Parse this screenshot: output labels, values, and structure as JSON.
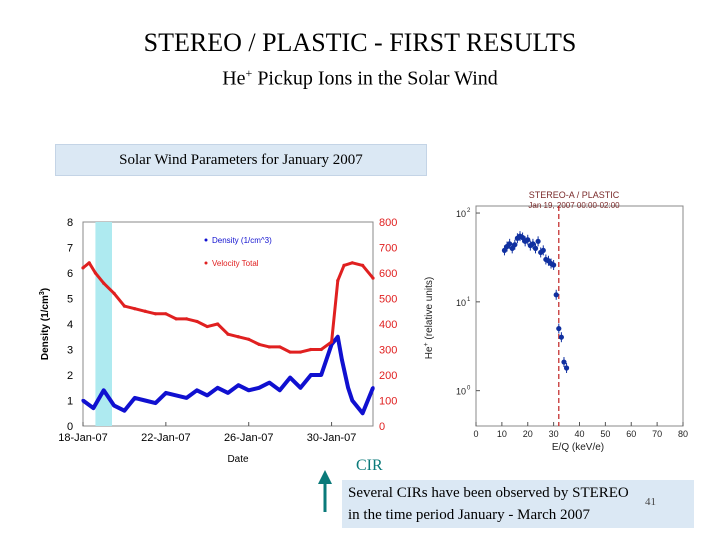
{
  "slide": {
    "title": "STEREO / PLASTIC - FIRST RESULTS",
    "subtitle_main": "He",
    "subtitle_sup": "+",
    "subtitle_rest": " Pickup Ions in the Solar Wind",
    "banner": "Solar Wind Parameters for January 2007",
    "cir_label": "CIR",
    "note_line1": "Several CIRs have been observed by STEREO",
    "note_line2": "in the time period January - March 2007",
    "page_number": "41"
  },
  "colors": {
    "accent": "#0a7a7a",
    "density": "#1010d0",
    "velocity": "#e02020",
    "highlight": "#aeeaf0",
    "spectrum": "#1030a0",
    "marker_line": "#c02020"
  },
  "chart_data": [
    {
      "type": "line",
      "title": "",
      "xlabel": "Date",
      "ylabel_left": "Density (1/cm",
      "ylabel_left_sup": "3",
      "ylabel_left_end": ")",
      "x_ticks": [
        "18-Jan-07",
        "22-Jan-07",
        "26-Jan-07",
        "30-Jan-07"
      ],
      "x_range_days": [
        18,
        32
      ],
      "y_left_ticks": [
        "0",
        "1",
        "2",
        "3",
        "4",
        "5",
        "6",
        "7",
        "8"
      ],
      "y_left_range": [
        0,
        8
      ],
      "y_right_ticks": [
        "0",
        "100",
        "200",
        "300",
        "400",
        "500",
        "600",
        "700",
        "800"
      ],
      "y_right_range": [
        0,
        800
      ],
      "legend": [
        "Density (1/cm^3)",
        "Velocity Total"
      ],
      "highlight_days": [
        18.6,
        19.4
      ],
      "series": [
        {
          "name": "Density (1/cm^3)",
          "axis": "left",
          "x": [
            18.0,
            18.5,
            19.0,
            19.5,
            20.0,
            20.5,
            21.0,
            21.5,
            22.0,
            22.5,
            23.0,
            23.5,
            24.0,
            24.5,
            25.0,
            25.5,
            26.0,
            26.5,
            27.0,
            27.5,
            28.0,
            28.5,
            29.0,
            29.5,
            30.0,
            30.3,
            30.5,
            30.8,
            31.0,
            31.5,
            32.0
          ],
          "y": [
            1.0,
            0.7,
            1.4,
            0.8,
            0.6,
            1.1,
            1.0,
            0.9,
            1.3,
            1.2,
            1.1,
            1.4,
            1.2,
            1.5,
            1.3,
            1.6,
            1.4,
            1.5,
            1.7,
            1.4,
            1.9,
            1.5,
            2.0,
            2.0,
            3.2,
            3.5,
            2.6,
            1.5,
            1.0,
            0.5,
            1.5
          ]
        },
        {
          "name": "Velocity Total",
          "axis": "right",
          "x": [
            18.0,
            18.3,
            18.6,
            19.0,
            19.5,
            20.0,
            20.5,
            21.0,
            21.5,
            22.0,
            22.5,
            23.0,
            23.5,
            24.0,
            24.5,
            25.0,
            25.5,
            26.0,
            26.5,
            27.0,
            27.5,
            28.0,
            28.5,
            29.0,
            29.5,
            30.0,
            30.3,
            30.6,
            31.0,
            31.5,
            32.0
          ],
          "y": [
            620,
            640,
            600,
            560,
            520,
            470,
            460,
            450,
            440,
            440,
            420,
            420,
            410,
            390,
            400,
            360,
            350,
            340,
            320,
            310,
            310,
            290,
            290,
            300,
            300,
            330,
            570,
            630,
            640,
            630,
            580
          ]
        }
      ]
    },
    {
      "type": "scatter",
      "title_line1": "STEREO-A / PLASTIC",
      "title_line2": "Jan 19, 2007 00:00-02:00",
      "xlabel": "E/Q (keV/e)",
      "ylabel": "He",
      "ylabel_sup": "+",
      "ylabel_rest": " (relative units)",
      "x_range": [
        0,
        80
      ],
      "x_ticks": [
        "0",
        "10",
        "20",
        "30",
        "40",
        "50",
        "60",
        "70",
        "80"
      ],
      "y_scale": "log",
      "y_range": [
        0.4,
        120
      ],
      "y_ticks": [
        "10",
        "10",
        "10"
      ],
      "y_tick_exps": [
        "0",
        "1",
        "2"
      ],
      "cutoff_x": 32,
      "points_x": [
        11,
        12,
        13,
        14,
        15,
        16,
        17,
        18,
        19,
        20,
        21,
        22,
        23,
        24,
        25,
        26,
        27,
        28,
        29,
        30,
        31,
        32,
        33,
        34,
        35
      ],
      "points_y": [
        38,
        42,
        45,
        40,
        44,
        52,
        55,
        53,
        48,
        50,
        43,
        45,
        40,
        48,
        36,
        38,
        30,
        29,
        27,
        26,
        12,
        5,
        4,
        2.1,
        1.8
      ]
    }
  ]
}
